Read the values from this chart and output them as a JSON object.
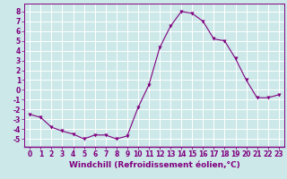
{
  "x": [
    0,
    1,
    2,
    3,
    4,
    5,
    6,
    7,
    8,
    9,
    10,
    11,
    12,
    13,
    14,
    15,
    16,
    17,
    18,
    19,
    20,
    21,
    22,
    23
  ],
  "y": [
    -2.5,
    -2.8,
    -3.8,
    -4.2,
    -4.5,
    -5.0,
    -4.6,
    -4.6,
    -5.0,
    -4.7,
    -1.8,
    0.5,
    4.3,
    6.5,
    8.0,
    7.8,
    7.0,
    5.2,
    5.0,
    3.2,
    1.0,
    -0.8,
    -0.8,
    -0.5
  ],
  "line_color": "#800080",
  "marker": "v",
  "marker_size": 2.5,
  "bg_color": "#cce8e8",
  "grid_color": "#ffffff",
  "axis_color": "#800080",
  "xlabel": "Windchill (Refroidissement éolien,°C)",
  "ylabel": "",
  "ylim": [
    -5.8,
    8.8
  ],
  "xlim": [
    -0.5,
    23.5
  ],
  "yticks": [
    -5,
    -4,
    -3,
    -2,
    -1,
    0,
    1,
    2,
    3,
    4,
    5,
    6,
    7,
    8
  ],
  "xticks": [
    0,
    1,
    2,
    3,
    4,
    5,
    6,
    7,
    8,
    9,
    10,
    11,
    12,
    13,
    14,
    15,
    16,
    17,
    18,
    19,
    20,
    21,
    22,
    23
  ],
  "tick_font_size": 5.5,
  "label_font_size": 6.5,
  "line_width": 0.8
}
